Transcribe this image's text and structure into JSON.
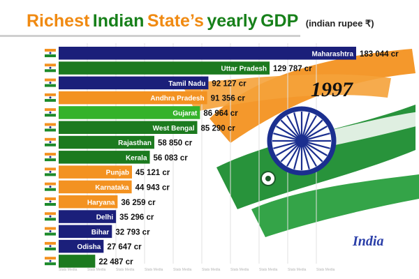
{
  "title": {
    "words": [
      {
        "text": "Richest",
        "color": "#f08a12"
      },
      {
        "text": "Indian",
        "color": "#17801a"
      },
      {
        "text": "State’s",
        "color": "#f08a12"
      },
      {
        "text": "yearly",
        "color": "#17801a"
      },
      {
        "text": "GDP",
        "color": "#17801a"
      }
    ],
    "unit": "(indian rupee ₹)"
  },
  "year": "1997",
  "country": "India",
  "watermark": "Stats Media",
  "colors": {
    "dark_blue": "#1b1f7a",
    "dark_green": "#1c7a1f",
    "light_green": "#34b22a",
    "orange": "#f39221"
  },
  "chart_data": {
    "type": "bar",
    "orientation": "horizontal",
    "unit_suffix": "cr",
    "bars": [
      {
        "label": "Maharashtra",
        "value": 183044,
        "value_text": "183 044 cr",
        "color": "#1b1f7a"
      },
      {
        "label": "Uttar Pradesh",
        "value": 129787,
        "value_text": "129 787 cr",
        "color": "#1c7a1f"
      },
      {
        "label": "Tamil Nadu",
        "value": 92127,
        "value_text": "92 127 cr",
        "color": "#1b1f7a"
      },
      {
        "label": "Andhra Pradesh",
        "value": 91356,
        "value_text": "91 356 cr",
        "color": "#f39221"
      },
      {
        "label": "Gujarat",
        "value": 86964,
        "value_text": "86 964 cr",
        "color": "#34b22a"
      },
      {
        "label": "West Bengal",
        "value": 85290,
        "value_text": "85 290 cr",
        "color": "#1c7a1f"
      },
      {
        "label": "Rajasthan",
        "value": 58850,
        "value_text": "58 850 cr",
        "color": "#1c7a1f"
      },
      {
        "label": "Kerala",
        "value": 56083,
        "value_text": "56 083 cr",
        "color": "#1c7a1f"
      },
      {
        "label": "Punjab",
        "value": 45121,
        "value_text": "45 121 cr",
        "color": "#f39221"
      },
      {
        "label": "Karnataka",
        "value": 44943,
        "value_text": "44 943 cr",
        "color": "#f39221"
      },
      {
        "label": "Haryana",
        "value": 36259,
        "value_text": "36 259 cr",
        "color": "#f39221"
      },
      {
        "label": "Delhi",
        "value": 35296,
        "value_text": "35 296 cr",
        "color": "#1b1f7a"
      },
      {
        "label": "Bihar",
        "value": 32793,
        "value_text": "32 793 cr",
        "color": "#1b1f7a"
      },
      {
        "label": "Odisha",
        "value": 27647,
        "value_text": "27 647 cr",
        "color": "#1b1f7a"
      },
      {
        "label": "",
        "value": 22487,
        "value_text": "22 487 cr",
        "color": "#1c7a1f"
      }
    ],
    "xlim": [
      0,
      183044
    ],
    "grid": true,
    "legend": "none"
  }
}
